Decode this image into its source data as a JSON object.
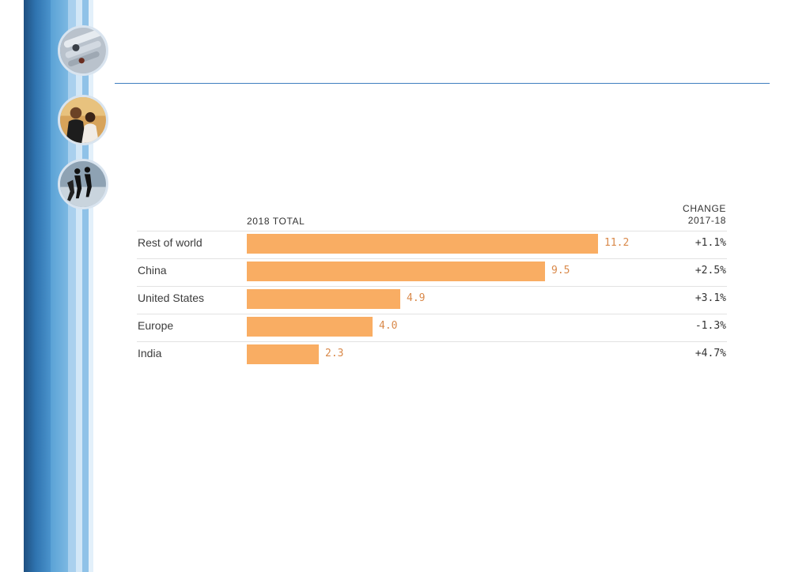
{
  "chart_data": {
    "type": "bar",
    "orientation": "horizontal",
    "column_header_total": "2018 TOTAL",
    "column_header_change_line1": "CHANGE",
    "column_header_change_line2": "2017-18",
    "categories": [
      "Rest of world",
      "China",
      "United States",
      "Europe",
      "India"
    ],
    "values": [
      11.2,
      9.5,
      4.9,
      4.0,
      2.3
    ],
    "value_labels": [
      "11.2",
      "9.5",
      "4.9",
      "4.0",
      "2.3"
    ],
    "changes": [
      "+1.1%",
      "+2.5%",
      "+3.1%",
      "-1.3%",
      "+4.7%"
    ],
    "xlim": [
      0,
      11.2
    ],
    "bar_color": "#f9ad63",
    "value_label_color": "#d9894a",
    "grid": false,
    "legend": "none"
  },
  "decor": {
    "icons": [
      "photo-machinery-icon",
      "photo-businesspeople-icon",
      "photo-walkers-icon"
    ],
    "accent_color": "#2f74b0",
    "rule_color": "#3f7fbf"
  }
}
